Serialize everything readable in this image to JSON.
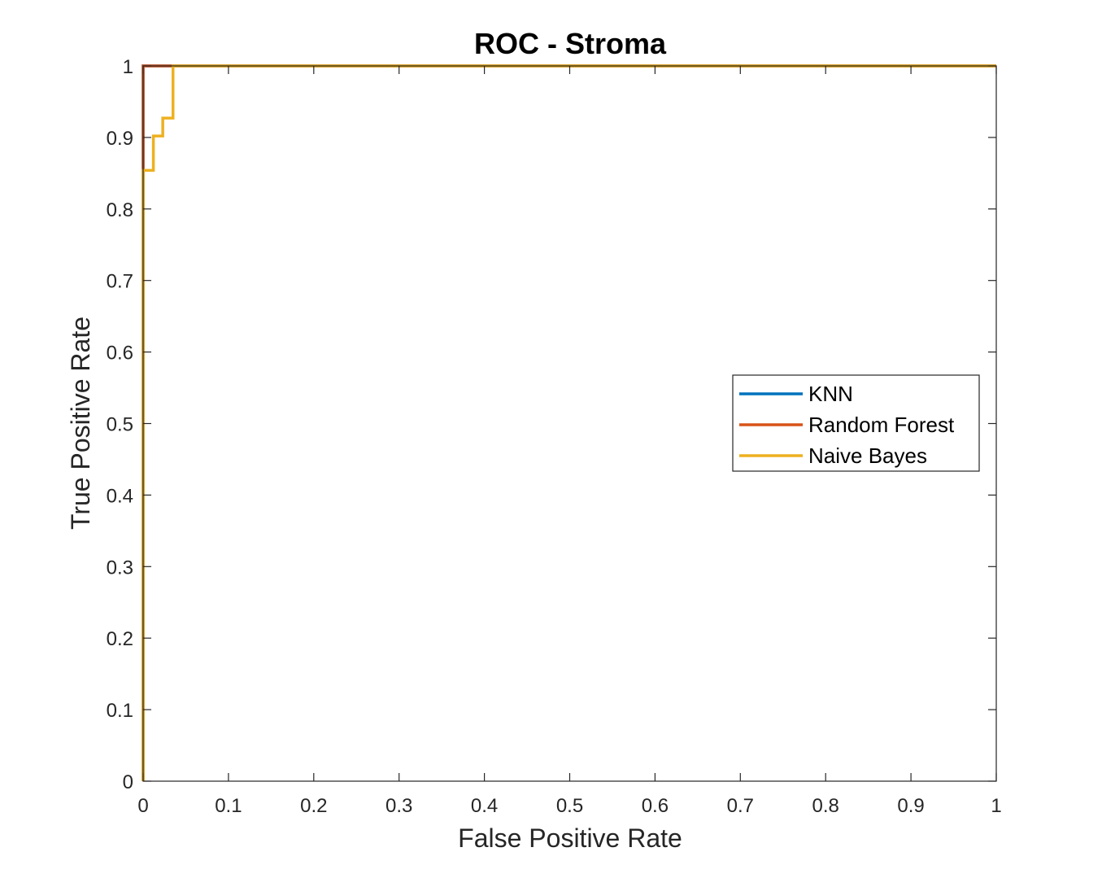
{
  "chart_data": {
    "type": "line",
    "title": "ROC - Stroma",
    "xlabel": "False Positive Rate",
    "ylabel": "True Positive Rate",
    "xlim": [
      0,
      1
    ],
    "ylim": [
      0,
      1
    ],
    "xticks": [
      "0",
      "0.1",
      "0.2",
      "0.3",
      "0.4",
      "0.5",
      "0.6",
      "0.7",
      "0.8",
      "0.9",
      "1"
    ],
    "yticks": [
      "0",
      "0.1",
      "0.2",
      "0.3",
      "0.4",
      "0.5",
      "0.6",
      "0.7",
      "0.8",
      "0.9",
      "1"
    ],
    "grid": false,
    "legend_position": "right",
    "series": [
      {
        "name": "KNN",
        "color": "#0072BD",
        "x": [
          0,
          0,
          1
        ],
        "y": [
          0,
          1,
          1
        ]
      },
      {
        "name": "Random Forest",
        "color": "#D95319",
        "x": [
          0,
          0,
          1
        ],
        "y": [
          0,
          1,
          1
        ]
      },
      {
        "name": "Naive Bayes",
        "color": "#EDB120",
        "x": [
          0,
          0,
          0.012,
          0.012,
          0.023,
          0.023,
          0.035,
          0.035,
          1
        ],
        "y": [
          0,
          0.854,
          0.854,
          0.902,
          0.902,
          0.927,
          0.927,
          1,
          1
        ]
      }
    ]
  }
}
